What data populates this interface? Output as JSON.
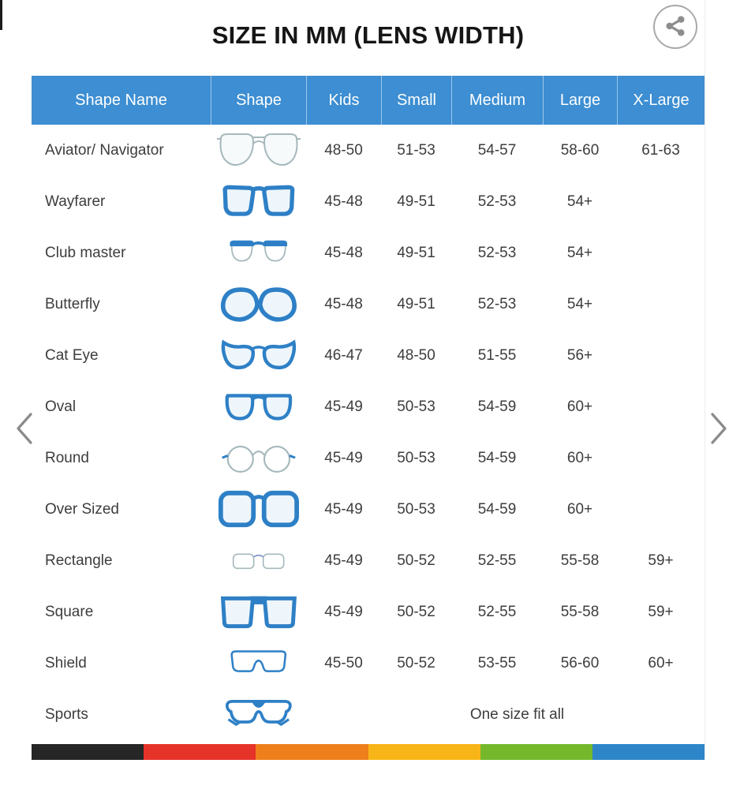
{
  "title": "SIZE IN MM (LENS WIDTH)",
  "header_bar": {
    "share_icon": "share-icon"
  },
  "carousel": {
    "prev_icon": "chevron-left-icon",
    "next_icon": "chevron-right-icon"
  },
  "table": {
    "headers": [
      "Shape Name",
      "Shape",
      "Kids",
      "Small",
      "Medium",
      "Large",
      "X-Large"
    ],
    "rows": [
      {
        "name": "Aviator/ Navigator",
        "icon": "aviator-glasses-icon",
        "sizes": [
          "48-50",
          "51-53",
          "54-57",
          "58-60",
          "61-63"
        ]
      },
      {
        "name": "Wayfarer",
        "icon": "wayfarer-glasses-icon",
        "sizes": [
          "45-48",
          "49-51",
          "52-53",
          "54+",
          ""
        ]
      },
      {
        "name": "Club master",
        "icon": "clubmaster-glasses-icon",
        "sizes": [
          "45-48",
          "49-51",
          "52-53",
          "54+",
          ""
        ]
      },
      {
        "name": "Butterfly",
        "icon": "butterfly-glasses-icon",
        "sizes": [
          "45-48",
          "49-51",
          "52-53",
          "54+",
          ""
        ]
      },
      {
        "name": "Cat Eye",
        "icon": "cateye-glasses-icon",
        "sizes": [
          "46-47",
          "48-50",
          "51-55",
          "56+",
          ""
        ]
      },
      {
        "name": "Oval",
        "icon": "oval-glasses-icon",
        "sizes": [
          "45-49",
          "50-53",
          "54-59",
          "60+",
          ""
        ]
      },
      {
        "name": "Round",
        "icon": "round-glasses-icon",
        "sizes": [
          "45-49",
          "50-53",
          "54-59",
          "60+",
          ""
        ]
      },
      {
        "name": "Over Sized",
        "icon": "oversized-glasses-icon",
        "sizes": [
          "45-49",
          "50-53",
          "54-59",
          "60+",
          ""
        ]
      },
      {
        "name": "Rectangle",
        "icon": "rectangle-glasses-icon",
        "sizes": [
          "45-49",
          "50-52",
          "52-55",
          "55-58",
          "59+"
        ]
      },
      {
        "name": "Square",
        "icon": "square-glasses-icon",
        "sizes": [
          "45-49",
          "50-52",
          "52-55",
          "55-58",
          "59+"
        ]
      },
      {
        "name": "Shield",
        "icon": "shield-glasses-icon",
        "sizes": [
          "45-50",
          "50-52",
          "53-55",
          "56-60",
          "60+"
        ]
      },
      {
        "name": "Sports",
        "icon": "sports-glasses-icon",
        "span_text": "One size fit all"
      }
    ]
  },
  "colors": {
    "header_blue": "#3d8ed2",
    "icon_blue": "#2e80c6",
    "icon_gray": "#a5b8bc",
    "title_text": "#161616",
    "body_text": "#3d3d3d",
    "bottom_bar": [
      "#262626",
      "#e63329",
      "#ee7f1b",
      "#f8b517",
      "#75b82b",
      "#2e86c9"
    ]
  }
}
